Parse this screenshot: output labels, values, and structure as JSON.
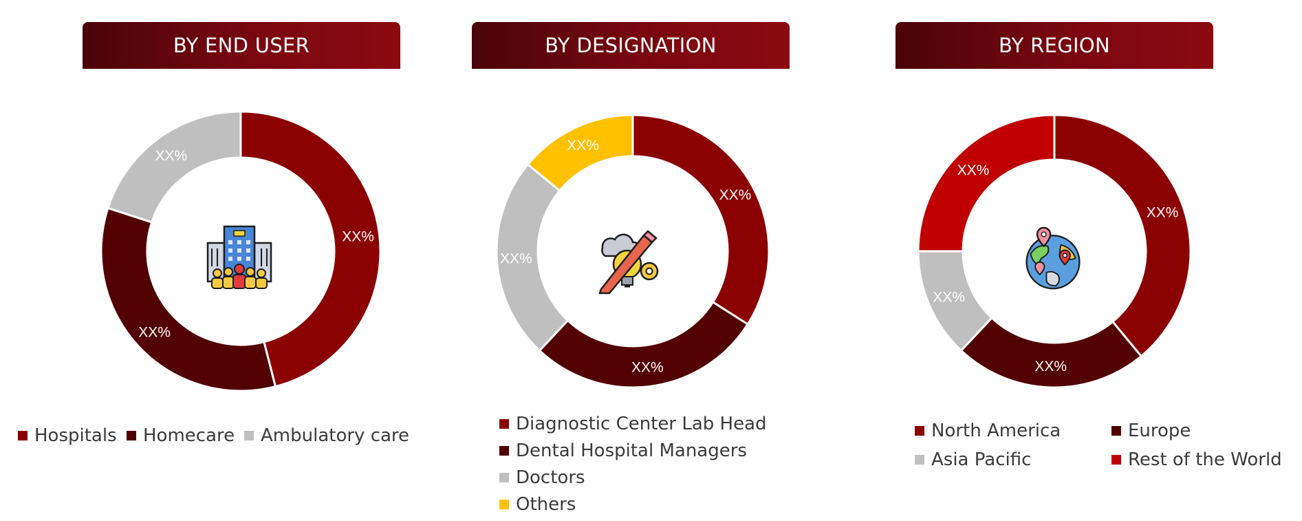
{
  "colors": {
    "dark_red": "#8B0000",
    "maroon": "#520000",
    "gray": "#BFBFBF",
    "gold": "#FFC000",
    "red": "#C00000"
  },
  "chart_data": [
    {
      "type": "pie",
      "title": "BY END USER",
      "categories": [
        "Hospitals",
        "Homecare",
        "Ambulatory care"
      ],
      "values": [
        46,
        34,
        20
      ],
      "data_labels": [
        "XX%",
        "XX%",
        "XX%"
      ],
      "colors": [
        "#8B0000",
        "#520000",
        "#BFBFBF"
      ],
      "icon": "hospital-building-icon",
      "legend_position": "bottom"
    },
    {
      "type": "pie",
      "title": "BY DESIGNATION",
      "categories": [
        "Diagnostic Center Lab Head",
        "Dental Hospital Managers",
        "Doctors",
        "Others"
      ],
      "values": [
        34,
        28,
        24,
        14
      ],
      "data_labels": [
        "XX%",
        "XX%",
        "XX%",
        "XX%"
      ],
      "colors": [
        "#8B0000",
        "#520000",
        "#BFBFBF",
        "#FFC000"
      ],
      "icon": "idea-design-icon",
      "legend_position": "bottom"
    },
    {
      "type": "pie",
      "title": "BY REGION",
      "categories": [
        "North America",
        "Europe",
        "Asia Pacific",
        "Rest of the World"
      ],
      "values": [
        39,
        23,
        13,
        25
      ],
      "data_labels": [
        "XX%",
        "XX%",
        "XX%",
        "XX%"
      ],
      "colors": [
        "#8B0000",
        "#520000",
        "#BFBFBF",
        "#C00000"
      ],
      "icon": "globe-location-icon",
      "legend_position": "bottom"
    }
  ]
}
